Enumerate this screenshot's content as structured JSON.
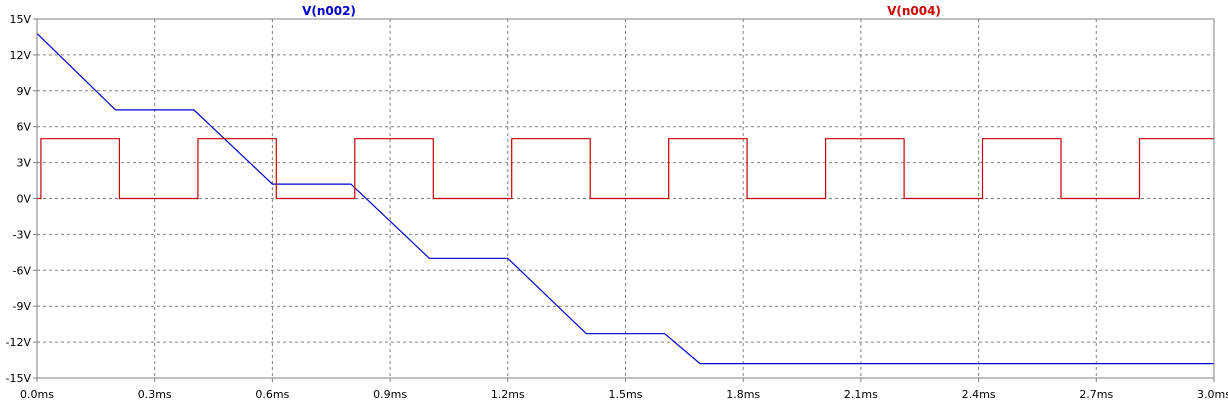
{
  "chart_data": {
    "type": "line",
    "title": "",
    "xlabel": "",
    "ylabel": "",
    "xlim": [
      0,
      3.0
    ],
    "ylim": [
      -15,
      15
    ],
    "x_ticks": [
      {
        "value": 0.0,
        "label": "0.0ms"
      },
      {
        "value": 0.3,
        "label": "0.3ms"
      },
      {
        "value": 0.6,
        "label": "0.6ms"
      },
      {
        "value": 0.9,
        "label": "0.9ms"
      },
      {
        "value": 1.2,
        "label": "1.2ms"
      },
      {
        "value": 1.5,
        "label": "1.5ms"
      },
      {
        "value": 1.8,
        "label": "1.8ms"
      },
      {
        "value": 2.1,
        "label": "2.1ms"
      },
      {
        "value": 2.4,
        "label": "2.4ms"
      },
      {
        "value": 2.7,
        "label": "2.7ms"
      },
      {
        "value": 3.0,
        "label": "3.0ms"
      }
    ],
    "y_ticks": [
      {
        "value": 15,
        "label": "15V"
      },
      {
        "value": 12,
        "label": "12V"
      },
      {
        "value": 9,
        "label": "9V"
      },
      {
        "value": 6,
        "label": "6V"
      },
      {
        "value": 3,
        "label": "3V"
      },
      {
        "value": 0,
        "label": "0V"
      },
      {
        "value": -3,
        "label": "-3V"
      },
      {
        "value": -6,
        "label": "-6V"
      },
      {
        "value": -9,
        "label": "-9V"
      },
      {
        "value": -12,
        "label": "-12V"
      },
      {
        "value": -15,
        "label": "-15V"
      }
    ],
    "grid": true,
    "legend_placement": "top",
    "series": [
      {
        "name": "V(n002)",
        "color": "#0000cc",
        "x": [
          0.0,
          0.2,
          0.4,
          0.6,
          0.8,
          1.0,
          1.2,
          1.4,
          1.6,
          1.69,
          3.0
        ],
        "y": [
          13.8,
          7.4,
          7.4,
          1.2,
          1.2,
          -5.0,
          -5.0,
          -11.3,
          -11.3,
          -13.8,
          -13.8
        ]
      },
      {
        "name": "V(n004)",
        "color": "#cc0000",
        "x": [
          0.0,
          0.01,
          0.01,
          0.21,
          0.21,
          0.41,
          0.41,
          0.61,
          0.61,
          0.81,
          0.81,
          1.01,
          1.01,
          1.21,
          1.21,
          1.41,
          1.41,
          1.61,
          1.61,
          1.81,
          1.81,
          2.01,
          2.01,
          2.21,
          2.21,
          2.41,
          2.41,
          2.61,
          2.61,
          2.81,
          2.81,
          3.0
        ],
        "y": [
          0,
          0,
          5,
          5,
          0,
          0,
          5,
          5,
          0,
          0,
          5,
          5,
          0,
          0,
          5,
          5,
          0,
          0,
          5,
          5,
          0,
          0,
          5,
          5,
          0,
          0,
          5,
          5,
          0,
          0,
          5,
          5
        ]
      }
    ]
  }
}
